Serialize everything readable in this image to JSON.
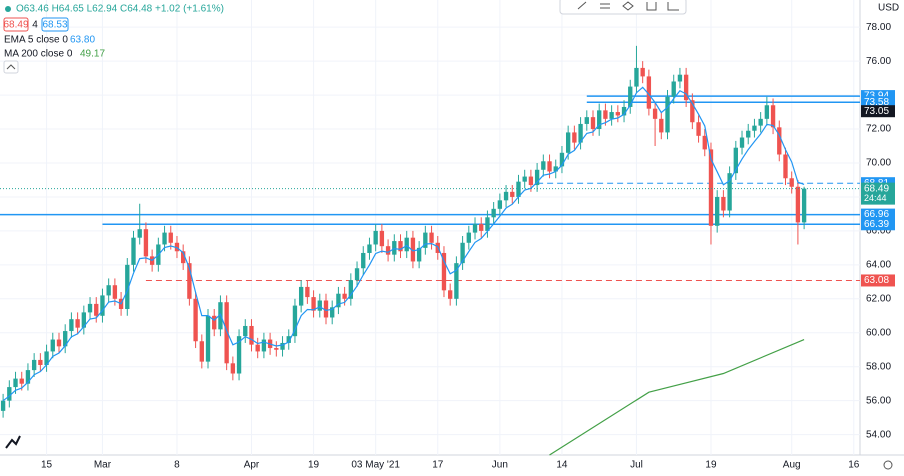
{
  "chart_data": {
    "type": "candlestick",
    "currency": "USD",
    "header": {
      "ohlc": "O63.46 H64.65 L62.94 C64.48 +1.02 (+1.61%)",
      "bid": "68.49",
      "spread": "4",
      "ask": "68.53",
      "ema_label": "EMA 5 close 0",
      "ema_value": "63.80",
      "ma_label": "MA 200 close 0",
      "ma_value": "49.17"
    },
    "up_color": "#26a69a",
    "down_color": "#ef5350",
    "xlim": [
      -0.5,
      138
    ],
    "xticks": [
      {
        "value": 7,
        "label": "15"
      },
      {
        "value": 16,
        "label": "Mar"
      },
      {
        "value": 28,
        "label": "8"
      },
      {
        "value": 40,
        "label": "Apr"
      },
      {
        "value": 50,
        "label": "19"
      },
      {
        "value": 60,
        "label": "03 May '21"
      },
      {
        "value": 70,
        "label": "17"
      },
      {
        "value": 80,
        "label": "Jun"
      },
      {
        "value": 90,
        "label": "14"
      },
      {
        "value": 102,
        "label": "Jul"
      },
      {
        "value": 114,
        "label": "19"
      },
      {
        "value": 127,
        "label": "Aug"
      },
      {
        "value": 137,
        "label": "16"
      }
    ],
    "ylim": [
      52.8,
      79.6
    ],
    "yticks": [
      {
        "value": 54,
        "label": "54.00"
      },
      {
        "value": 56,
        "label": "56.00"
      },
      {
        "value": 58,
        "label": "58.00"
      },
      {
        "value": 60,
        "label": "60.00"
      },
      {
        "value": 62,
        "label": "62.00"
      },
      {
        "value": 64,
        "label": "64.00"
      },
      {
        "value": 66,
        "label": "66.00"
      },
      {
        "value": 68,
        "label": "68.00"
      },
      {
        "value": 70,
        "label": "70.00"
      },
      {
        "value": 72,
        "label": "72.00"
      },
      {
        "value": 74,
        "label": "74.00"
      },
      {
        "value": 76,
        "label": "76.00"
      },
      {
        "value": 78,
        "label": "78.00"
      }
    ],
    "grid": true,
    "open": [
      55.4,
      56.0,
      56.8,
      57.3,
      57.0,
      57.8,
      58.4,
      58.1,
      58.9,
      59.6,
      59.2,
      60.1,
      60.8,
      60.3,
      61.2,
      61.7,
      61.0,
      62.2,
      62.8,
      62.0,
      61.4,
      64.0,
      65.6,
      66.1,
      64.5,
      64.0,
      65.2,
      65.9,
      65.3,
      64.8,
      64.1,
      62.0,
      59.5,
      58.3,
      61.0,
      60.2,
      61.8,
      58.2,
      57.6,
      59.8,
      60.4,
      59.3,
      58.9,
      59.6,
      59.1,
      59.0,
      59.4,
      59.8,
      61.6,
      62.7,
      62.1,
      61.3,
      61.9,
      60.9,
      61.5,
      62.3,
      62.0,
      63.1,
      63.8,
      64.7,
      65.2,
      66.0,
      65.1,
      64.6,
      65.4,
      64.8,
      65.6,
      64.2,
      65.0,
      65.9,
      65.3,
      64.7,
      62.5,
      62.0,
      64.1,
      65.3,
      65.9,
      66.4,
      66.0,
      66.8,
      67.3,
      67.8,
      68.3,
      68.0,
      68.9,
      69.2,
      68.7,
      69.6,
      70.1,
      69.5,
      69.8,
      70.6,
      71.8,
      71.2,
      72.3,
      72.7,
      72.0,
      73.1,
      72.6,
      73.0,
      72.8,
      73.3,
      74.5,
      75.6,
      75.1,
      73.2,
      72.6,
      71.8,
      73.9,
      74.8,
      75.2,
      73.7,
      72.4,
      71.6,
      70.8,
      66.3,
      68.0,
      67.2,
      69.4,
      70.9,
      71.5,
      71.9,
      72.2,
      72.6,
      73.4,
      72.1,
      70.5,
      69.1,
      68.6,
      66.5
    ],
    "high": [
      56.4,
      57.2,
      57.7,
      57.7,
      58.2,
      58.8,
      58.8,
      59.3,
      60.0,
      60.0,
      60.5,
      61.2,
      61.2,
      61.6,
      62.1,
      62.1,
      62.6,
      63.2,
      63.2,
      62.4,
      64.4,
      66.0,
      67.6,
      66.5,
      64.9,
      65.6,
      66.3,
      66.3,
      65.7,
      65.2,
      64.5,
      62.4,
      59.9,
      61.4,
      61.4,
      62.2,
      62.2,
      58.6,
      60.2,
      60.8,
      60.8,
      59.7,
      60.0,
      60.0,
      59.5,
      59.8,
      60.2,
      62.0,
      63.1,
      63.1,
      62.5,
      62.3,
      62.3,
      61.9,
      62.7,
      62.7,
      63.5,
      64.2,
      65.1,
      65.6,
      66.4,
      66.4,
      65.5,
      65.8,
      65.8,
      66.0,
      66.0,
      65.4,
      66.3,
      66.3,
      65.7,
      65.1,
      62.9,
      64.5,
      65.7,
      66.3,
      66.8,
      66.8,
      67.2,
      67.7,
      68.2,
      68.7,
      68.7,
      69.3,
      69.6,
      69.6,
      70.0,
      70.5,
      70.5,
      70.2,
      71.0,
      72.2,
      72.2,
      72.7,
      73.1,
      73.1,
      73.5,
      73.5,
      73.4,
      73.4,
      73.7,
      74.9,
      76.9,
      76.0,
      75.5,
      73.6,
      73.0,
      74.3,
      75.2,
      75.6,
      75.6,
      74.1,
      72.8,
      72.0,
      71.2,
      68.4,
      68.4,
      69.8,
      71.3,
      71.9,
      72.3,
      72.6,
      73.0,
      73.9,
      73.8,
      72.5,
      70.9,
      69.5,
      69.0,
      68.6
    ],
    "low": [
      55.0,
      55.6,
      56.4,
      56.6,
      56.6,
      57.4,
      57.7,
      57.7,
      58.5,
      58.8,
      58.8,
      59.7,
      59.9,
      59.9,
      60.8,
      60.6,
      60.6,
      61.8,
      61.6,
      61.0,
      61.0,
      63.6,
      65.2,
      64.1,
      63.6,
      63.6,
      64.8,
      64.9,
      64.4,
      63.7,
      61.6,
      59.1,
      57.9,
      57.9,
      59.8,
      59.8,
      57.8,
      57.2,
      57.2,
      59.4,
      58.9,
      58.5,
      58.5,
      58.7,
      58.6,
      58.6,
      59.0,
      59.4,
      61.2,
      61.7,
      60.9,
      60.9,
      60.5,
      60.5,
      61.1,
      61.6,
      61.6,
      62.7,
      63.4,
      64.3,
      64.8,
      64.7,
      64.2,
      64.2,
      64.4,
      64.4,
      63.8,
      63.8,
      64.6,
      64.9,
      64.3,
      62.1,
      61.6,
      61.6,
      63.7,
      64.9,
      65.5,
      65.6,
      65.6,
      66.4,
      66.9,
      67.4,
      67.6,
      67.6,
      68.5,
      68.3,
      68.3,
      69.2,
      69.1,
      69.1,
      69.4,
      70.2,
      70.8,
      70.8,
      71.9,
      71.6,
      71.6,
      72.2,
      72.2,
      72.4,
      72.4,
      72.9,
      74.1,
      74.7,
      72.8,
      71.0,
      71.4,
      71.4,
      73.5,
      74.4,
      73.3,
      72.0,
      71.2,
      70.4,
      65.2,
      65.9,
      66.8,
      66.8,
      69.0,
      70.5,
      71.1,
      71.5,
      71.8,
      72.2,
      71.7,
      70.1,
      68.7,
      68.2,
      65.2,
      66.1
    ],
    "close": [
      56.0,
      56.8,
      57.3,
      57.0,
      57.8,
      58.4,
      58.1,
      58.9,
      59.6,
      59.2,
      60.1,
      60.8,
      60.3,
      61.2,
      61.7,
      61.0,
      62.2,
      62.8,
      62.0,
      61.4,
      64.0,
      65.6,
      66.1,
      64.5,
      64.0,
      65.2,
      65.9,
      65.3,
      64.8,
      64.1,
      62.0,
      59.5,
      58.3,
      61.0,
      60.2,
      61.8,
      58.2,
      57.6,
      59.8,
      60.4,
      59.3,
      58.9,
      59.6,
      59.1,
      59.0,
      59.4,
      59.8,
      61.6,
      62.7,
      62.1,
      61.3,
      61.9,
      60.9,
      61.5,
      62.3,
      62.0,
      63.1,
      63.8,
      64.7,
      65.2,
      66.0,
      65.1,
      64.6,
      65.4,
      64.8,
      65.6,
      64.2,
      65.0,
      65.9,
      65.3,
      64.7,
      62.5,
      62.0,
      64.1,
      65.3,
      65.9,
      66.4,
      66.0,
      66.8,
      67.3,
      67.8,
      68.3,
      68.0,
      68.9,
      69.2,
      68.7,
      69.6,
      70.1,
      69.5,
      69.8,
      70.6,
      71.8,
      71.2,
      72.3,
      72.7,
      72.0,
      73.1,
      72.6,
      73.0,
      72.8,
      73.3,
      74.5,
      75.6,
      75.1,
      73.2,
      72.6,
      71.8,
      73.9,
      74.8,
      75.2,
      73.7,
      72.4,
      71.6,
      70.8,
      66.3,
      68.0,
      67.2,
      69.4,
      70.9,
      71.5,
      71.9,
      72.2,
      72.6,
      73.4,
      72.1,
      70.5,
      69.1,
      68.6,
      66.5,
      68.49
    ],
    "ema": {
      "color": "#2196f3",
      "values": [
        56.0,
        56.27,
        56.61,
        56.74,
        57.09,
        57.53,
        57.72,
        58.11,
        58.61,
        58.81,
        59.24,
        59.76,
        59.94,
        60.36,
        60.81,
        60.87,
        61.31,
        61.81,
        61.87,
        61.71,
        62.47,
        63.51,
        64.37,
        64.41,
        64.27,
        64.58,
        65.02,
        65.11,
        65.01,
        64.71,
        63.81,
        62.37,
        61.01,
        61.01,
        60.74,
        61.09,
        60.13,
        59.29,
        59.46,
        59.77,
        59.61,
        59.37,
        59.45,
        59.33,
        59.22,
        59.28,
        59.45,
        60.17,
        61.01,
        61.37,
        61.35,
        61.53,
        61.32,
        61.38,
        61.69,
        61.79,
        62.23,
        62.75,
        63.4,
        64.0,
        64.67,
        64.81,
        64.74,
        64.96,
        64.91,
        65.14,
        64.83,
        64.89,
        65.23,
        65.25,
        65.07,
        64.21,
        63.47,
        63.68,
        64.22,
        64.78,
        65.32,
        65.55,
        65.97,
        66.41,
        66.87,
        67.35,
        67.57,
        68.01,
        68.41,
        68.51,
        68.87,
        69.28,
        69.35,
        69.5,
        69.87,
        70.51,
        70.74,
        71.26,
        71.74,
        71.83,
        72.25,
        72.37,
        72.58,
        72.65,
        72.87,
        73.41,
        74.14,
        74.46,
        74.04,
        73.56,
        72.97,
        73.28,
        73.79,
        74.26,
        74.07,
        73.51,
        72.87,
        72.18,
        70.22,
        69.48,
        68.72,
        68.95,
        69.6,
        70.23,
        70.79,
        71.26,
        71.71,
        72.27,
        72.21,
        71.64,
        70.79,
        70.06,
        68.87,
        68.74
      ]
    },
    "ma": {
      "color": "#43a047",
      "x": [
        88,
        104,
        116,
        129
      ],
      "values": [
        52.8,
        56.5,
        57.6,
        59.6
      ]
    },
    "levels": [
      {
        "value": 73.94,
        "label": "73.94",
        "color": "#2196f3",
        "style": "solid",
        "from": 94
      },
      {
        "value": 73.58,
        "label": "73.58",
        "color": "#2196f3",
        "style": "solid",
        "from": 94
      },
      {
        "value": 68.81,
        "label": "68.81",
        "color": "#2196f3",
        "style": "dashed",
        "from": 86
      },
      {
        "value": 66.96,
        "label": "66.96",
        "color": "#2196f3",
        "style": "solid",
        "from": -0.5
      },
      {
        "value": 66.39,
        "label": "66.39",
        "color": "#2196f3",
        "style": "solid",
        "from": 16
      },
      {
        "value": 63.08,
        "label": "63.08",
        "color": "#ef5350",
        "style": "dashed",
        "from": 23
      }
    ],
    "last_price": {
      "value": 68.49,
      "label": "68.49",
      "countdown": "24:44",
      "color": "#26a69a"
    },
    "marker": {
      "value": 73.05,
      "label": "73.05"
    }
  }
}
